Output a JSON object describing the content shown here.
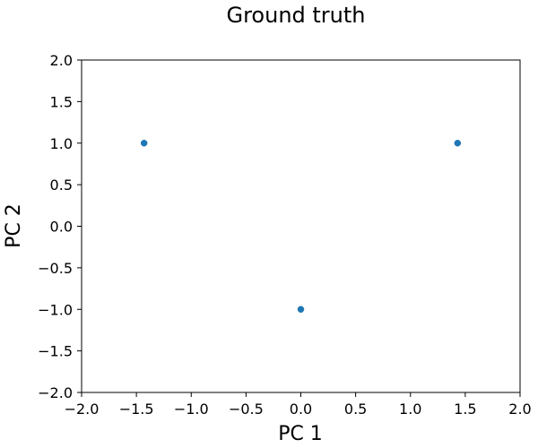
{
  "chart_data": {
    "type": "scatter",
    "title": "Ground truth",
    "xlabel": "PC 1",
    "ylabel": "PC 2",
    "xlim": [
      -2.0,
      2.0
    ],
    "ylim": [
      -2.0,
      2.0
    ],
    "x_ticks": [
      -2.0,
      -1.5,
      -1.0,
      -0.5,
      0.0,
      0.5,
      1.0,
      1.5,
      2.0
    ],
    "y_ticks": [
      -2.0,
      -1.5,
      -1.0,
      -0.5,
      0.0,
      0.5,
      1.0,
      1.5,
      2.0
    ],
    "x_tick_labels": [
      "−2.0",
      "−1.5",
      "−1.0",
      "−0.5",
      "0.0",
      "0.5",
      "1.0",
      "1.5",
      "2.0"
    ],
    "y_tick_labels": [
      "−2.0",
      "−1.5",
      "−1.0",
      "−0.5",
      "0.0",
      "0.5",
      "1.0",
      "1.5",
      "2.0"
    ],
    "grid": false,
    "legend": "none",
    "series": [
      {
        "color": "#1f77b4",
        "points": [
          {
            "x": -1.43,
            "y": 1.0
          },
          {
            "x": 1.43,
            "y": 1.0
          },
          {
            "x": 0.0,
            "y": -1.0
          }
        ]
      }
    ]
  }
}
